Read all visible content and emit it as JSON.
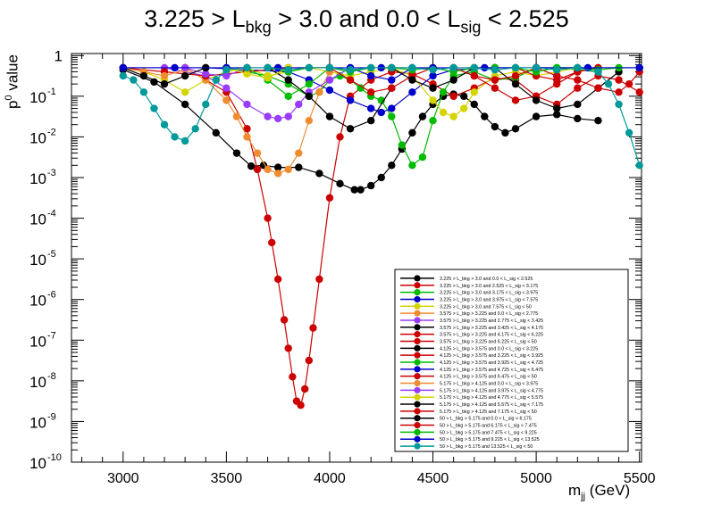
{
  "title": {
    "prefix": "3.225 > L",
    "sub1": "bkg",
    "mid": " > 3.0 and 0.0 <  L",
    "sub2": "sig",
    "suffix": " < 2.525"
  },
  "ylabel": {
    "base": "p",
    "sup": "0",
    "rest": " value"
  },
  "xlabel": {
    "base": "m",
    "sub": "jj",
    "rest": " (GeV)"
  },
  "chart_data": {
    "type": "scatter",
    "title": "3.225 > L_bkg > 3.0 and 0.0 < L_sig < 2.525",
    "xlabel": "m_jj (GeV)",
    "ylabel": "p^0 value",
    "xlim": [
      2750,
      5510
    ],
    "ylim_log10": [
      -10,
      0.05
    ],
    "yscale": "log",
    "grid": false,
    "legend_position": "bottom-right",
    "x_ticks": [
      3000,
      3500,
      4000,
      4500,
      5000,
      5500
    ],
    "y_ticks": [
      "1",
      "10^-1",
      "10^-2",
      "10^-3",
      "10^-4",
      "10^-5",
      "10^-6",
      "10^-7",
      "10^-8",
      "10^-9",
      "10^-10"
    ],
    "series": [
      {
        "name": "3.225 > L_bkg > 3.0 and 0.0 < L_sig < 2.525",
        "color": "#000000",
        "x": [
          3000,
          3150,
          3300,
          3450,
          3550,
          3620,
          3680,
          3750,
          3850,
          3950,
          4050,
          4120,
          4150,
          4200,
          4250,
          4300,
          4350,
          4400,
          4450,
          4500,
          4550,
          4600,
          4650,
          4700,
          4750,
          4800,
          4850,
          4900,
          5000,
          5100,
          5200,
          5300
        ],
        "logp": [
          -0.35,
          -0.65,
          -1.2,
          -1.9,
          -2.4,
          -2.72,
          -2.7,
          -2.75,
          -2.75,
          -2.9,
          -3.15,
          -3.3,
          -3.3,
          -3.2,
          -3.0,
          -2.7,
          -2.3,
          -1.9,
          -1.5,
          -1.2,
          -1.0,
          -0.95,
          -1.0,
          -1.2,
          -1.5,
          -1.75,
          -1.9,
          -1.8,
          -1.5,
          -1.45,
          -1.55,
          -1.6
        ]
      },
      {
        "name": "3.225 > L_bkg > 3.0 and 2.525 < L_sig < 3.175",
        "color": "#cc0000",
        "x": [
          3300,
          3500,
          3600,
          3650,
          3700,
          3720,
          3750,
          3780,
          3800,
          3820,
          3840,
          3860,
          3880,
          3900,
          3920,
          3950,
          4000,
          4050,
          4100,
          4200,
          4300,
          4400,
          4500,
          4600,
          4700,
          4800,
          4900,
          5000,
          5100,
          5200,
          5300,
          5400,
          5500
        ],
        "logp": [
          -0.3,
          -0.9,
          -1.8,
          -2.8,
          -4.0,
          -4.6,
          -5.5,
          -6.5,
          -7.2,
          -7.9,
          -8.5,
          -8.6,
          -8.2,
          -7.5,
          -6.7,
          -5.5,
          -3.5,
          -2.0,
          -1.0,
          -0.6,
          -0.4,
          -0.45,
          -0.7,
          -1.0,
          -0.8,
          -0.55,
          -0.6,
          -1.0,
          -1.2,
          -0.8,
          -0.5,
          -0.6,
          -0.9
        ]
      },
      {
        "name": "3.225 > L_bkg > 3.0 and 3.175 < L_sig < 3.975",
        "color": "#00bb00",
        "x": [
          3500,
          3600,
          3700,
          3800,
          3900,
          3950,
          4000,
          4050,
          4100,
          4150,
          4200,
          4250,
          4300,
          4350,
          4400,
          4450,
          4500,
          4550,
          4600,
          4700,
          4800,
          4900,
          5000,
          5100,
          5200,
          5300
        ],
        "logp": [
          -0.3,
          -0.4,
          -0.5,
          -0.7,
          -1.0,
          -0.9,
          -0.6,
          -0.5,
          -0.6,
          -0.8,
          -1.0,
          -1.1,
          -1.5,
          -2.2,
          -2.7,
          -2.5,
          -1.6,
          -0.9,
          -0.5,
          -0.4,
          -0.6,
          -0.55,
          -0.3,
          -0.3,
          -0.35,
          -0.4
        ]
      },
      {
        "name": "3.225 > L_bkg > 3.0 and 3.975 < L_sig < 7.575",
        "color": "#0000cc",
        "x": [
          3000,
          3400,
          3800,
          3900,
          4000,
          4100,
          4200,
          4250,
          4300,
          4400,
          4500,
          4600,
          4800,
          5000,
          5200,
          5500
        ],
        "logp": [
          -0.3,
          -0.3,
          -0.4,
          -0.6,
          -0.85,
          -1.1,
          -1.3,
          -1.4,
          -1.3,
          -0.9,
          -0.5,
          -0.35,
          -0.3,
          -0.3,
          -0.3,
          -0.3
        ]
      },
      {
        "name": "3.225 > L_bkg > 3.0 and 7.575 < L_sig < 50",
        "color": "#d4d400",
        "x": [
          3000,
          3100,
          3200,
          3300,
          3400,
          3500,
          3600,
          3700,
          3800,
          3900,
          4000,
          4100,
          4200,
          4300,
          4400,
          4500,
          4550,
          4600,
          4650,
          4700,
          4800,
          4900,
          5000,
          5100,
          5200
        ],
        "logp": [
          -0.3,
          -0.4,
          -0.6,
          -0.9,
          -0.6,
          -0.4,
          -0.3,
          -0.5,
          -0.4,
          -0.3,
          -0.4,
          -0.5,
          -0.4,
          -0.3,
          -0.5,
          -1.1,
          -1.4,
          -1.5,
          -1.3,
          -0.9,
          -0.5,
          -0.4,
          -0.5,
          -0.4,
          -0.3
        ]
      },
      {
        "name": "3.575 > L_bkg > 3.225 and 0.0 < L_sig < 2.775",
        "color": "#f08c30",
        "x": [
          3300,
          3400,
          3500,
          3550,
          3600,
          3650,
          3700,
          3750,
          3800,
          3850,
          3900,
          3950,
          4000
        ],
        "logp": [
          -0.3,
          -0.6,
          -1.1,
          -1.5,
          -2.0,
          -2.4,
          -2.8,
          -2.9,
          -2.8,
          -2.4,
          -1.6,
          -0.9,
          -0.4
        ]
      },
      {
        "name": "3.575 > L_bkg > 3.225 and 2.775 < L_sig < 3.425",
        "color": "#9a3cff",
        "x": [
          3200,
          3400,
          3500,
          3600,
          3700,
          3750,
          3800,
          3850,
          3900,
          4000,
          4100
        ],
        "logp": [
          -0.3,
          -0.5,
          -0.8,
          -1.2,
          -1.5,
          -1.55,
          -1.5,
          -1.2,
          -0.9,
          -0.6,
          -0.3
        ]
      },
      {
        "name": "3.575 > L_bkg > 3.225 and 3.425 < L_sig < 4.175",
        "color": "#000000",
        "x": [
          3700,
          3800,
          3900,
          4000,
          4100,
          4200,
          4300
        ],
        "logp": [
          -0.3,
          -0.6,
          -1.0,
          -1.5,
          -1.8,
          -1.6,
          -0.8
        ]
      },
      {
        "name": "3.575 > L_bkg > 3.225 and 4.175 < L_sig < 6.225",
        "color": "#cc0000",
        "x": [
          4000,
          4100,
          4200,
          4300,
          4400,
          4500
        ],
        "logp": [
          -0.3,
          -0.6,
          -0.9,
          -0.8,
          -0.5,
          -0.3
        ]
      },
      {
        "name": "3.575 > L_bkg > 3.225 and 6.225 < L_sig < 50",
        "color": "#cc0000",
        "x": [
          4600,
          4700,
          4800,
          4900,
          5000,
          5100,
          5200,
          5300
        ],
        "logp": [
          -0.3,
          -0.5,
          -0.8,
          -1.1,
          -1.0,
          -0.7,
          -0.4,
          -0.3
        ]
      },
      {
        "name": "4.125 > L_bkg > 3.575 and 0.0 < L_sig < 3.225",
        "color": "#000000",
        "x": [
          4800,
          4900,
          5000,
          5100,
          5200,
          5300,
          5400
        ],
        "logp": [
          -0.3,
          -0.7,
          -1.1,
          -1.3,
          -1.2,
          -0.8,
          -0.4
        ]
      },
      {
        "name": "4.125 > L_bkg > 3.575 and 3.225 < L_sig < 3.925",
        "color": "#cc0000",
        "x": [
          3000,
          3200,
          3400,
          3600,
          3800,
          4000
        ],
        "logp": [
          -0.3,
          -0.4,
          -0.5,
          -0.4,
          -0.3,
          -0.3
        ]
      },
      {
        "name": "4.125 > L_bkg > 3.575 and 3.925 < L_sig < 4.725",
        "color": "#00bb00",
        "x": [
          3600,
          3700,
          3800,
          3900,
          4000
        ],
        "logp": [
          -0.3,
          -0.6,
          -1.0,
          -0.7,
          -0.3
        ]
      },
      {
        "name": "4.125 > L_bkg > 3.575 and 4.725 < L_sig < 6.475",
        "color": "#0000cc",
        "x": [
          4100,
          4200,
          4300,
          4400
        ],
        "logp": [
          -0.3,
          -0.5,
          -0.6,
          -0.3
        ]
      },
      {
        "name": "4.125 > L_bkg > 3.575 and 6.475 < L_sig < 50",
        "color": "#cc0000",
        "x": [
          4900,
          5000,
          5100,
          5200,
          5300
        ],
        "logp": [
          -0.3,
          -0.5,
          -0.6,
          -0.4,
          -0.3
        ]
      },
      {
        "name": "5.175 > L_bkg > 4.125 and 0.0 < L_sig < 3.975",
        "color": "#f08c30",
        "x": [
          3000,
          3100,
          3200,
          3300
        ],
        "logp": [
          -0.3,
          -0.4,
          -0.5,
          -0.35
        ]
      },
      {
        "name": "5.175 > L_bkg > 4.125 and 3.975 < L_sig < 4.775",
        "color": "#9a3cff",
        "x": [
          3300,
          3400,
          3500,
          3600
        ],
        "logp": [
          -0.3,
          -0.45,
          -0.5,
          -0.3
        ]
      },
      {
        "name": "5.175 > L_bkg > 4.125 and 4.775 < L_sig < 5.575",
        "color": "#d4d400",
        "x": [
          3500,
          3600,
          3700,
          3800
        ],
        "logp": [
          -0.3,
          -0.45,
          -0.55,
          -0.3
        ]
      },
      {
        "name": "5.175 > L_bkg > 4.125 and 5.575 < L_sig < 7.175",
        "color": "#000000",
        "x": [
          4300,
          4400,
          4500,
          4600,
          4700
        ],
        "logp": [
          -0.3,
          -0.6,
          -0.8,
          -0.6,
          -0.3
        ]
      },
      {
        "name": "5.175 > L_bkg > 4.125 and 7.175 < L_sig < 50",
        "color": "#cc0000",
        "x": [
          4600,
          4700,
          4800,
          4900,
          5000
        ],
        "logp": [
          -0.3,
          -0.5,
          -0.6,
          -0.5,
          -0.3
        ]
      },
      {
        "name": "50 > L_bkg > 5.175 and 0.0 < L_sig < 6.175",
        "color": "#000000",
        "x": [
          3000,
          3100,
          3200,
          3300,
          3400
        ],
        "logp": [
          -0.3,
          -0.5,
          -0.7,
          -0.5,
          -0.3
        ]
      },
      {
        "name": "50 > L_bkg > 5.175 and 6.175 < L_sig < 7.475",
        "color": "#cc0000",
        "x": [
          5000,
          5100,
          5200,
          5300,
          5400,
          5450,
          5500
        ],
        "logp": [
          -0.3,
          -0.5,
          -0.6,
          -0.8,
          -0.9,
          -0.7,
          -0.4
        ]
      },
      {
        "name": "50 > L_bkg > 5.175 and 7.475 < L_sig < 9.225",
        "color": "#00bb00",
        "x": [
          3700,
          3800,
          3900,
          4000,
          4100,
          4200,
          4300,
          4400,
          4500,
          4600,
          4700,
          4800,
          4900,
          5000,
          5100,
          5200,
          5300,
          5400,
          5500
        ],
        "logp": [
          -0.3,
          -0.4,
          -0.3,
          -0.3,
          -0.4,
          -0.3,
          -0.3,
          -0.35,
          -0.3,
          -0.4,
          -0.3,
          -0.3,
          -0.3,
          -0.4,
          -0.3,
          -0.3,
          -0.35,
          -0.3,
          -0.3
        ]
      },
      {
        "name": "50 > L_bkg > 5.175 and 9.225 < L_sig < 13.525",
        "color": "#0000cc",
        "x": [
          3000,
          3250,
          3500,
          3750,
          4000,
          4250,
          4500,
          4750,
          5000,
          5250,
          5500
        ],
        "logp": [
          -0.3,
          -0.3,
          -0.3,
          -0.3,
          -0.3,
          -0.3,
          -0.3,
          -0.3,
          -0.3,
          -0.3,
          -0.3
        ]
      },
      {
        "name": "50 > L_bkg > 5.175 and 13.525 < L_sig < 50",
        "color": "#009999",
        "x": [
          3000,
          3050,
          3100,
          3150,
          3200,
          3250,
          3300,
          3350,
          3400,
          3450,
          3500,
          3600,
          3700,
          3800,
          3900,
          4000,
          4100,
          4200,
          4300,
          4400,
          4500,
          4600,
          4700,
          4800,
          4900,
          5000,
          5100,
          5200,
          5300,
          5350,
          5400,
          5450,
          5500
        ],
        "logp": [
          -0.5,
          -0.6,
          -0.9,
          -1.3,
          -1.7,
          -2.0,
          -2.1,
          -1.8,
          -1.2,
          -0.6,
          -0.35,
          -0.3,
          -0.3,
          -0.35,
          -0.3,
          -0.3,
          -0.35,
          -0.3,
          -0.3,
          -0.3,
          -0.35,
          -0.3,
          -0.3,
          -0.35,
          -0.3,
          -0.3,
          -0.35,
          -0.3,
          -0.4,
          -0.7,
          -1.2,
          -1.9,
          -2.7
        ]
      }
    ]
  },
  "legend_labels": [
    "3.225 > L_bkg > 3.0 and 0.0 < L_sig < 2.525",
    "3.225 > L_bkg > 3.0 and 2.525 < L_sig < 3.175",
    "3.225 > L_bkg > 3.0 and 3.175 < L_sig < 3.975",
    "3.225 > L_bkg > 3.0 and 3.975 < L_sig < 7.575",
    "3.225 > L_bkg > 3.0 and 7.575 < L_sig < 50",
    "3.575 > L_bkg > 3.225 and 0.0 < L_sig < 2.775",
    "3.575 > L_bkg > 3.225 and 2.775 < L_sig < 3.425",
    "3.575 > L_bkg > 3.225 and 3.425 < L_sig < 4.175",
    "3.575 > L_bkg > 3.225 and 4.175 < L_sig < 6.225",
    "3.575 > L_bkg > 3.225 and 6.225 < L_sig < 50",
    "4.125 > L_bkg > 3.575 and 0.0 < L_sig < 3.225",
    "4.125 > L_bkg > 3.575 and 3.225 < L_sig < 3.925",
    "4.125 > L_bkg > 3.575 and 3.925 < L_sig < 4.725",
    "4.125 > L_bkg > 3.575 and 4.725 < L_sig < 6.475",
    "4.125 > L_bkg > 3.575 and 6.475 < L_sig < 50",
    "5.175 > L_bkg > 4.125 and 0.0 < L_sig < 3.975",
    "5.175 > L_bkg > 4.125 and 3.975 < L_sig < 4.775",
    "5.175 > L_bkg > 4.125 and 4.775 < L_sig < 5.575",
    "5.175 > L_bkg > 4.125 and 5.575 < L_sig < 7.175",
    "5.175 > L_bkg > 4.125 and 7.175 < L_sig < 50",
    "50 > L_bkg > 5.175 and 0.0 < L_sig < 6.175",
    "50 > L_bkg > 5.175 and 6.175 < L_sig < 7.475",
    "50 > L_bkg > 5.175 and 7.475 < L_sig < 9.225",
    "50 > L_bkg > 5.175 and 9.225 < L_sig < 13.525",
    "50 > L_bkg > 5.175 and 13.525 < L_sig < 50"
  ]
}
